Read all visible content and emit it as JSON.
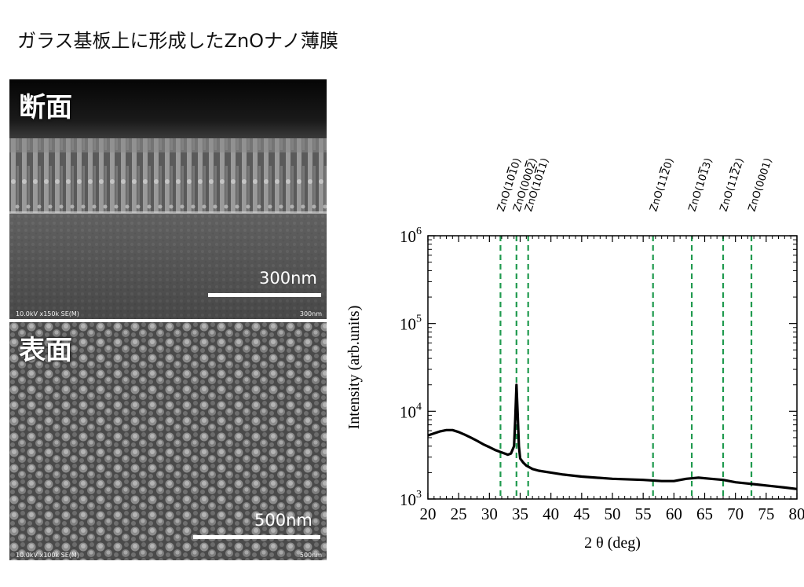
{
  "page_title": "ガラス基板上に形成したZnOナノ薄膜",
  "sem_images": [
    {
      "label": "断面",
      "scale_text": "300nm",
      "meta_left": "10.0kV x150k SE(M)",
      "meta_right": "300nm"
    },
    {
      "label": "表面",
      "scale_text": "500nm",
      "meta_left": "10.0kV x100k SE(M)",
      "meta_right": "500nm"
    }
  ],
  "chart_data": {
    "type": "line",
    "xlabel": "2 θ (deg)",
    "ylabel": "Intensity (arb.units)",
    "xlim": [
      20,
      80
    ],
    "ylim": [
      1000,
      1000000
    ],
    "yscale": "log",
    "grid": false,
    "xticks": [
      20,
      25,
      30,
      35,
      40,
      45,
      50,
      55,
      60,
      65,
      70,
      75,
      80
    ],
    "yticks": [
      {
        "value": 1000,
        "base": "10",
        "exp": "3"
      },
      {
        "value": 10000,
        "base": "10",
        "exp": "4"
      },
      {
        "value": 100000,
        "base": "10",
        "exp": "5"
      },
      {
        "value": 1000000,
        "base": "10",
        "exp": "6"
      }
    ],
    "series": [
      {
        "color": "#000000",
        "x": [
          20,
          21,
          22,
          23,
          24,
          25,
          26,
          27,
          28,
          29,
          30,
          31,
          32,
          33,
          33.5,
          34,
          34.2,
          34.4,
          34.6,
          34.8,
          35,
          35.5,
          36,
          37,
          38,
          40,
          42,
          45,
          50,
          55,
          58,
          60,
          62,
          64,
          66,
          68,
          70,
          72,
          74,
          76,
          78,
          80
        ],
        "y": [
          5300,
          5600,
          5900,
          6100,
          6100,
          5800,
          5400,
          5000,
          4600,
          4200,
          3900,
          3600,
          3400,
          3200,
          3300,
          4000,
          8000,
          20000,
          9000,
          4000,
          2900,
          2600,
          2400,
          2200,
          2100,
          2000,
          1900,
          1800,
          1700,
          1650,
          1600,
          1600,
          1700,
          1750,
          1700,
          1650,
          1550,
          1500,
          1450,
          1400,
          1350,
          1300
        ]
      }
    ],
    "reference_lines": [
      {
        "x": 31.8,
        "label": "ZnO(10",
        "label_bar": "1",
        "label_end": "0)"
      },
      {
        "x": 34.4,
        "label": "ZnO(000",
        "label_bar": "2",
        "label_end": ")"
      },
      {
        "x": 36.3,
        "label": "ZnO(10",
        "label_bar": "1",
        "label_end": "1)"
      },
      {
        "x": 56.6,
        "label": "ZnO(11",
        "label_bar": "2",
        "label_end": "0)"
      },
      {
        "x": 62.9,
        "label": "ZnO(10",
        "label_bar": "1",
        "label_end": "3)"
      },
      {
        "x": 68.0,
        "label": "ZnO(11",
        "label_bar": "2",
        "label_end": "2)"
      },
      {
        "x": 72.6,
        "label": "ZnO(0001)",
        "label_bar": "",
        "label_end": ""
      }
    ],
    "reference_line_color": "#1f9a4e",
    "trace_color": "#000000"
  }
}
